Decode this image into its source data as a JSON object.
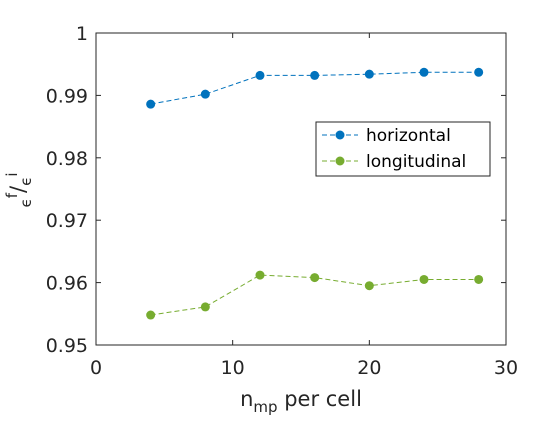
{
  "chart_data": {
    "type": "line",
    "x": [
      4,
      8,
      12,
      16,
      20,
      24,
      28
    ],
    "series": [
      {
        "name": "horizontal",
        "color": "#0072BD",
        "values": [
          0.9886,
          0.9902,
          0.9932,
          0.9932,
          0.9934,
          0.9937,
          0.9937
        ]
      },
      {
        "name": "longitudinal",
        "color": "#77AC30",
        "values": [
          0.9548,
          0.9561,
          0.9612,
          0.9608,
          0.9595,
          0.9605,
          0.9605
        ]
      }
    ],
    "xlim": [
      0,
      30
    ],
    "ylim": [
      0.95,
      1
    ],
    "xticks": [
      0,
      10,
      20,
      30
    ],
    "xtick_labels": [
      "0",
      "10",
      "20",
      "30"
    ],
    "yticks": [
      0.95,
      0.96,
      0.97,
      0.98,
      0.99,
      1
    ],
    "ytick_labels": [
      "0.95",
      "0.96",
      "0.97",
      "0.98",
      "0.99",
      "1"
    ],
    "xlabel": {
      "main": "n",
      "sub": "mp",
      "rest": " per cell"
    },
    "ylabel": {
      "sub1": "ϵ",
      "sup1": "f",
      "slash": "/",
      "sub2": "ϵ",
      "sup2": "i"
    },
    "legend_position": "right",
    "grid": false
  }
}
